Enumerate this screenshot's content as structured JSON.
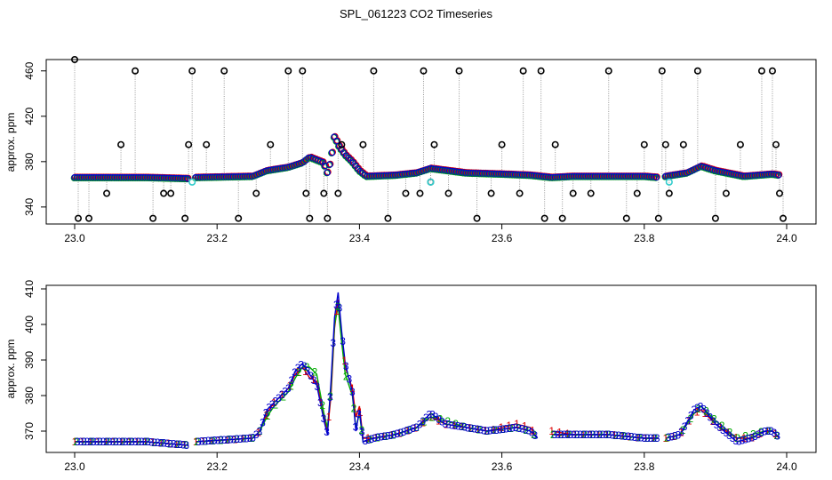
{
  "title": "SPL_061223  CO2 Timeseries",
  "colors": {
    "raw": "#000000",
    "flagged": "#33cccc",
    "s1": "#dd0000",
    "s2": "#00aa00",
    "s3": "#0000cc",
    "dotted": "#999999"
  },
  "chart_data": [
    {
      "type": "scatter",
      "title": "",
      "xlabel": "",
      "ylabel": "approx. ppm",
      "xlim": [
        23.0,
        24.0
      ],
      "ylim": [
        325,
        470
      ],
      "x_ticks": [
        23.0,
        23.2,
        23.4,
        23.6,
        23.8,
        24.0
      ],
      "x_tick_labels": [
        "23.0",
        "23.2",
        "23.4",
        "23.6",
        "23.8",
        "24.0"
      ],
      "y_ticks": [
        340,
        380,
        420,
        460
      ],
      "y_tick_labels": [
        "340",
        "380",
        "420",
        "460"
      ],
      "baseline_series": [
        [
          23.0,
          366
        ],
        [
          23.05,
          366
        ],
        [
          23.1,
          366
        ],
        [
          23.16,
          365
        ],
        [
          23.17,
          366
        ],
        [
          23.25,
          367
        ],
        [
          23.27,
          372
        ],
        [
          23.3,
          375
        ],
        [
          23.32,
          379
        ],
        [
          23.33,
          384
        ],
        [
          23.35,
          379
        ],
        [
          23.355,
          370
        ],
        [
          23.36,
          382
        ],
        [
          23.365,
          403
        ],
        [
          23.37,
          395
        ],
        [
          23.38,
          386
        ],
        [
          23.39,
          380
        ],
        [
          23.4,
          372
        ],
        [
          23.41,
          367
        ],
        [
          23.45,
          368
        ],
        [
          23.48,
          370
        ],
        [
          23.5,
          374
        ],
        [
          23.55,
          370
        ],
        [
          23.6,
          369
        ],
        [
          23.64,
          368
        ],
        [
          23.67,
          366
        ],
        [
          23.7,
          367
        ],
        [
          23.8,
          367
        ],
        [
          23.82,
          366
        ],
        [
          23.83,
          367
        ],
        [
          23.86,
          370
        ],
        [
          23.88,
          376
        ],
        [
          23.9,
          372
        ],
        [
          23.94,
          367
        ],
        [
          23.98,
          369
        ],
        [
          23.99,
          368
        ]
      ],
      "spikes": [
        [
          23.0,
          470
        ],
        [
          23.005,
          330
        ],
        [
          23.02,
          330
        ],
        [
          23.045,
          352
        ],
        [
          23.065,
          395
        ],
        [
          23.085,
          460
        ],
        [
          23.11,
          330
        ],
        [
          23.125,
          352
        ],
        [
          23.135,
          352
        ],
        [
          23.155,
          330
        ],
        [
          23.16,
          395
        ],
        [
          23.165,
          460
        ],
        [
          23.185,
          395
        ],
        [
          23.21,
          460
        ],
        [
          23.23,
          330
        ],
        [
          23.255,
          352
        ],
        [
          23.275,
          395
        ],
        [
          23.3,
          460
        ],
        [
          23.32,
          460
        ],
        [
          23.325,
          352
        ],
        [
          23.33,
          330
        ],
        [
          23.35,
          352
        ],
        [
          23.355,
          330
        ],
        [
          23.37,
          352
        ],
        [
          23.375,
          395
        ],
        [
          23.405,
          395
        ],
        [
          23.42,
          460
        ],
        [
          23.44,
          330
        ],
        [
          23.465,
          352
        ],
        [
          23.485,
          352
        ],
        [
          23.49,
          460
        ],
        [
          23.5,
          362
        ],
        [
          23.505,
          395
        ],
        [
          23.525,
          352
        ],
        [
          23.54,
          460
        ],
        [
          23.565,
          330
        ],
        [
          23.585,
          352
        ],
        [
          23.6,
          395
        ],
        [
          23.625,
          352
        ],
        [
          23.63,
          460
        ],
        [
          23.655,
          460
        ],
        [
          23.66,
          330
        ],
        [
          23.675,
          395
        ],
        [
          23.685,
          330
        ],
        [
          23.7,
          352
        ],
        [
          23.725,
          352
        ],
        [
          23.75,
          460
        ],
        [
          23.775,
          330
        ],
        [
          23.79,
          352
        ],
        [
          23.8,
          395
        ],
        [
          23.82,
          330
        ],
        [
          23.825,
          460
        ],
        [
          23.83,
          395
        ],
        [
          23.835,
          352
        ],
        [
          23.855,
          395
        ],
        [
          23.875,
          460
        ],
        [
          23.9,
          330
        ],
        [
          23.915,
          352
        ],
        [
          23.935,
          395
        ],
        [
          23.965,
          460
        ],
        [
          23.98,
          460
        ],
        [
          23.985,
          395
        ],
        [
          23.99,
          352
        ],
        [
          23.995,
          330
        ]
      ],
      "flagged": [
        [
          23.165,
          362
        ],
        [
          23.5,
          362
        ],
        [
          23.835,
          362
        ]
      ],
      "marker_labels": []
    },
    {
      "type": "line",
      "title": "",
      "xlabel": "",
      "ylabel": "approx. ppm",
      "xlim": [
        23.0,
        24.0
      ],
      "ylim": [
        364,
        411
      ],
      "x_ticks": [
        23.0,
        23.2,
        23.4,
        23.6,
        23.8,
        24.0
      ],
      "x_tick_labels": [
        "23.0",
        "23.2",
        "23.4",
        "23.6",
        "23.8",
        "24.0"
      ],
      "y_ticks": [
        370,
        380,
        390,
        400,
        410
      ],
      "y_tick_labels": [
        "370",
        "380",
        "390",
        "400",
        "410"
      ],
      "series": [
        {
          "name": "1",
          "points": [
            [
              23.0,
              367
            ],
            [
              23.05,
              367
            ],
            [
              23.1,
              367
            ],
            [
              23.16,
              366
            ],
            [
              null,
              null
            ],
            [
              23.17,
              367
            ],
            [
              23.25,
              368
            ],
            [
              23.26,
              370
            ],
            [
              23.27,
              375
            ],
            [
              23.28,
              378
            ],
            [
              23.3,
              382
            ],
            [
              23.31,
              386
            ],
            [
              23.32,
              388
            ],
            [
              23.33,
              385
            ],
            [
              23.34,
              384
            ],
            [
              23.35,
              374
            ],
            [
              23.355,
              370
            ],
            [
              23.36,
              380
            ],
            [
              23.365,
              399
            ],
            [
              23.37,
              407
            ],
            [
              23.375,
              397
            ],
            [
              23.38,
              388
            ],
            [
              23.39,
              382
            ],
            [
              23.395,
              374
            ],
            [
              23.4,
              377
            ],
            [
              23.405,
              368
            ],
            [
              23.42,
              368
            ],
            [
              23.45,
              369
            ],
            [
              23.48,
              371
            ],
            [
              23.5,
              374
            ],
            [
              23.52,
              372
            ],
            [
              23.55,
              371
            ],
            [
              23.58,
              370
            ],
            [
              23.62,
              372
            ],
            [
              23.64,
              371
            ],
            [
              23.65,
              368
            ],
            [
              null,
              null
            ],
            [
              23.67,
              370
            ],
            [
              23.7,
              369
            ],
            [
              23.75,
              369
            ],
            [
              23.8,
              368
            ],
            [
              23.82,
              368
            ],
            [
              null,
              null
            ],
            [
              23.83,
              368
            ],
            [
              23.85,
              369
            ],
            [
              23.87,
              375
            ],
            [
              23.88,
              376
            ],
            [
              23.9,
              372
            ],
            [
              23.93,
              368
            ],
            [
              23.95,
              368
            ],
            [
              23.97,
              370
            ],
            [
              23.98,
              370
            ],
            [
              23.99,
              368
            ]
          ]
        },
        {
          "name": "2",
          "points": [
            [
              23.0,
              367
            ],
            [
              23.05,
              367
            ],
            [
              23.1,
              367
            ],
            [
              23.16,
              366
            ],
            [
              null,
              null
            ],
            [
              23.17,
              367
            ],
            [
              23.25,
              368
            ],
            [
              23.26,
              370
            ],
            [
              23.27,
              374
            ],
            [
              23.28,
              377
            ],
            [
              23.3,
              381
            ],
            [
              23.31,
              385
            ],
            [
              23.32,
              388
            ],
            [
              23.33,
              388
            ],
            [
              23.34,
              386
            ],
            [
              23.35,
              375
            ],
            [
              23.355,
              371
            ],
            [
              23.36,
              382
            ],
            [
              23.365,
              400
            ],
            [
              23.37,
              405
            ],
            [
              23.375,
              395
            ],
            [
              23.38,
              386
            ],
            [
              23.39,
              380
            ],
            [
              23.395,
              371
            ],
            [
              23.4,
              375
            ],
            [
              23.405,
              367
            ],
            [
              23.42,
              368
            ],
            [
              23.45,
              369
            ],
            [
              23.48,
              371
            ],
            [
              23.5,
              374
            ],
            [
              23.52,
              373
            ],
            [
              23.55,
              371
            ],
            [
              23.58,
              370
            ],
            [
              23.62,
              371
            ],
            [
              23.64,
              370
            ],
            [
              23.65,
              368
            ],
            [
              null,
              null
            ],
            [
              23.67,
              369
            ],
            [
              23.7,
              369
            ],
            [
              23.75,
              369
            ],
            [
              23.8,
              368
            ],
            [
              23.82,
              368
            ],
            [
              null,
              null
            ],
            [
              23.83,
              368
            ],
            [
              23.85,
              369
            ],
            [
              23.87,
              375
            ],
            [
              23.88,
              377
            ],
            [
              23.9,
              373
            ],
            [
              23.93,
              368
            ],
            [
              23.95,
              369
            ],
            [
              23.97,
              370
            ],
            [
              23.98,
              370
            ],
            [
              23.99,
              368
            ]
          ]
        },
        {
          "name": "3",
          "points": [
            [
              23.0,
              367
            ],
            [
              23.05,
              367
            ],
            [
              23.1,
              367
            ],
            [
              23.16,
              366
            ],
            [
              null,
              null
            ],
            [
              23.17,
              367
            ],
            [
              23.25,
              368
            ],
            [
              23.26,
              370
            ],
            [
              23.27,
              376
            ],
            [
              23.28,
              378
            ],
            [
              23.3,
              382
            ],
            [
              23.31,
              387
            ],
            [
              23.32,
              389
            ],
            [
              23.33,
              386
            ],
            [
              23.34,
              383
            ],
            [
              23.35,
              373
            ],
            [
              23.355,
              369
            ],
            [
              23.36,
              384
            ],
            [
              23.365,
              402
            ],
            [
              23.37,
              409
            ],
            [
              23.375,
              398
            ],
            [
              23.38,
              389
            ],
            [
              23.39,
              381
            ],
            [
              23.395,
              370
            ],
            [
              23.4,
              376
            ],
            [
              23.405,
              367
            ],
            [
              23.42,
              368
            ],
            [
              23.45,
              369
            ],
            [
              23.48,
              371
            ],
            [
              23.5,
              375
            ],
            [
              23.52,
              372
            ],
            [
              23.55,
              371
            ],
            [
              23.58,
              370
            ],
            [
              23.62,
              371
            ],
            [
              23.64,
              370
            ],
            [
              23.65,
              368
            ],
            [
              null,
              null
            ],
            [
              23.67,
              369
            ],
            [
              23.7,
              369
            ],
            [
              23.75,
              369
            ],
            [
              23.8,
              368
            ],
            [
              23.82,
              368
            ],
            [
              null,
              null
            ],
            [
              23.83,
              368
            ],
            [
              23.85,
              369
            ],
            [
              23.87,
              376
            ],
            [
              23.88,
              377
            ],
            [
              23.9,
              372
            ],
            [
              23.93,
              367
            ],
            [
              23.95,
              368
            ],
            [
              23.97,
              370
            ],
            [
              23.98,
              370
            ],
            [
              23.99,
              368
            ]
          ]
        }
      ],
      "marker_labels": [
        "1",
        "2",
        "3"
      ]
    }
  ]
}
